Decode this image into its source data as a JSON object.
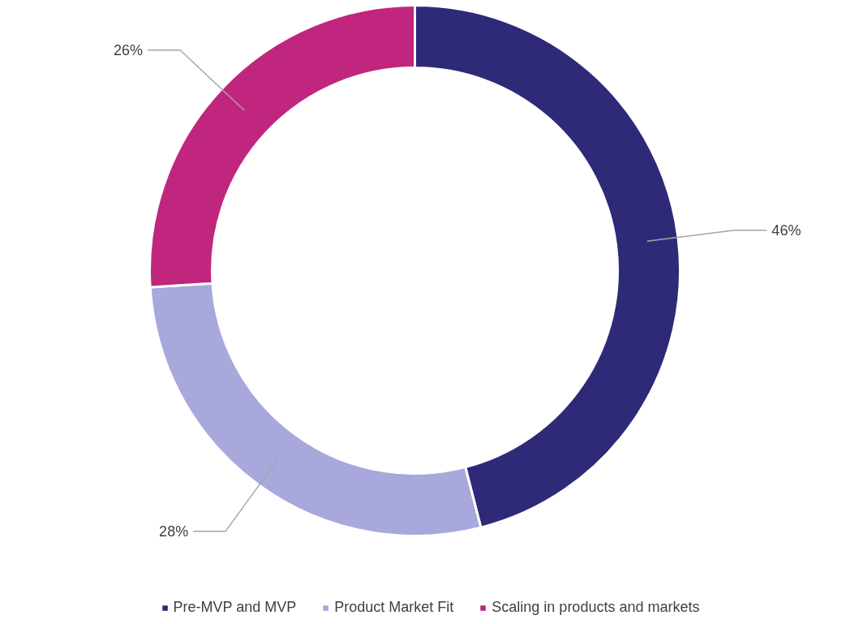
{
  "chart_data": {
    "type": "donut",
    "categories": [
      "Pre-MVP and MVP",
      "Product Market Fit",
      "Scaling in products and markets"
    ],
    "values": [
      46,
      28,
      26
    ],
    "colors": [
      "#2e2a78",
      "#a8a8dc",
      "#c0267e"
    ],
    "value_labels": [
      "46%",
      "28%",
      "26%"
    ],
    "legend": "bottom"
  }
}
